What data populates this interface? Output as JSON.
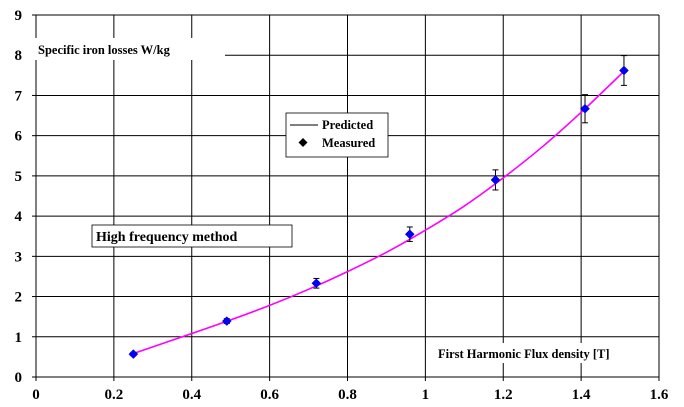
{
  "chart_data": {
    "type": "scatter",
    "ylabel": "Specific iron losses W/kg",
    "xlabel": "First Harmonic Flux density [T]",
    "method_label": "High frequency method",
    "xlim": [
      0,
      1.6
    ],
    "ylim": [
      0,
      9
    ],
    "x_ticks": [
      "0",
      "0.2",
      "0.4",
      "0.6",
      "0.8",
      "1",
      "1.2",
      "1.4",
      "1.6"
    ],
    "y_ticks": [
      "0",
      "1",
      "2",
      "3",
      "4",
      "5",
      "6",
      "7",
      "8",
      "9"
    ],
    "x_tick_values": [
      0,
      0.2,
      0.4,
      0.6,
      0.8,
      1.0,
      1.2,
      1.4,
      1.6
    ],
    "y_tick_values": [
      0,
      1,
      2,
      3,
      4,
      5,
      6,
      7,
      8,
      9
    ],
    "grid": true,
    "legend_position": "center",
    "series": [
      {
        "name": "Predicted",
        "kind": "line",
        "color": "#ff00ff",
        "x": [
          0.24,
          0.3,
          0.4,
          0.5,
          0.6,
          0.7,
          0.8,
          0.9,
          1.0,
          1.1,
          1.2,
          1.3,
          1.4,
          1.51
        ],
        "y": [
          0.55,
          0.75,
          1.08,
          1.42,
          1.78,
          2.18,
          2.62,
          3.1,
          3.65,
          4.25,
          4.95,
          5.72,
          6.58,
          7.6
        ]
      },
      {
        "name": "Measured",
        "kind": "points",
        "color": "#0000ff",
        "x": [
          0.25,
          0.49,
          0.72,
          0.96,
          1.18,
          1.41,
          1.51
        ],
        "y": [
          0.57,
          1.39,
          2.33,
          3.55,
          4.9,
          6.67,
          7.62
        ],
        "y_err": [
          0.04,
          0.06,
          0.12,
          0.18,
          0.25,
          0.35,
          0.37
        ]
      }
    ]
  },
  "colors": {
    "grid": "#000000",
    "background": "#ffffff"
  }
}
